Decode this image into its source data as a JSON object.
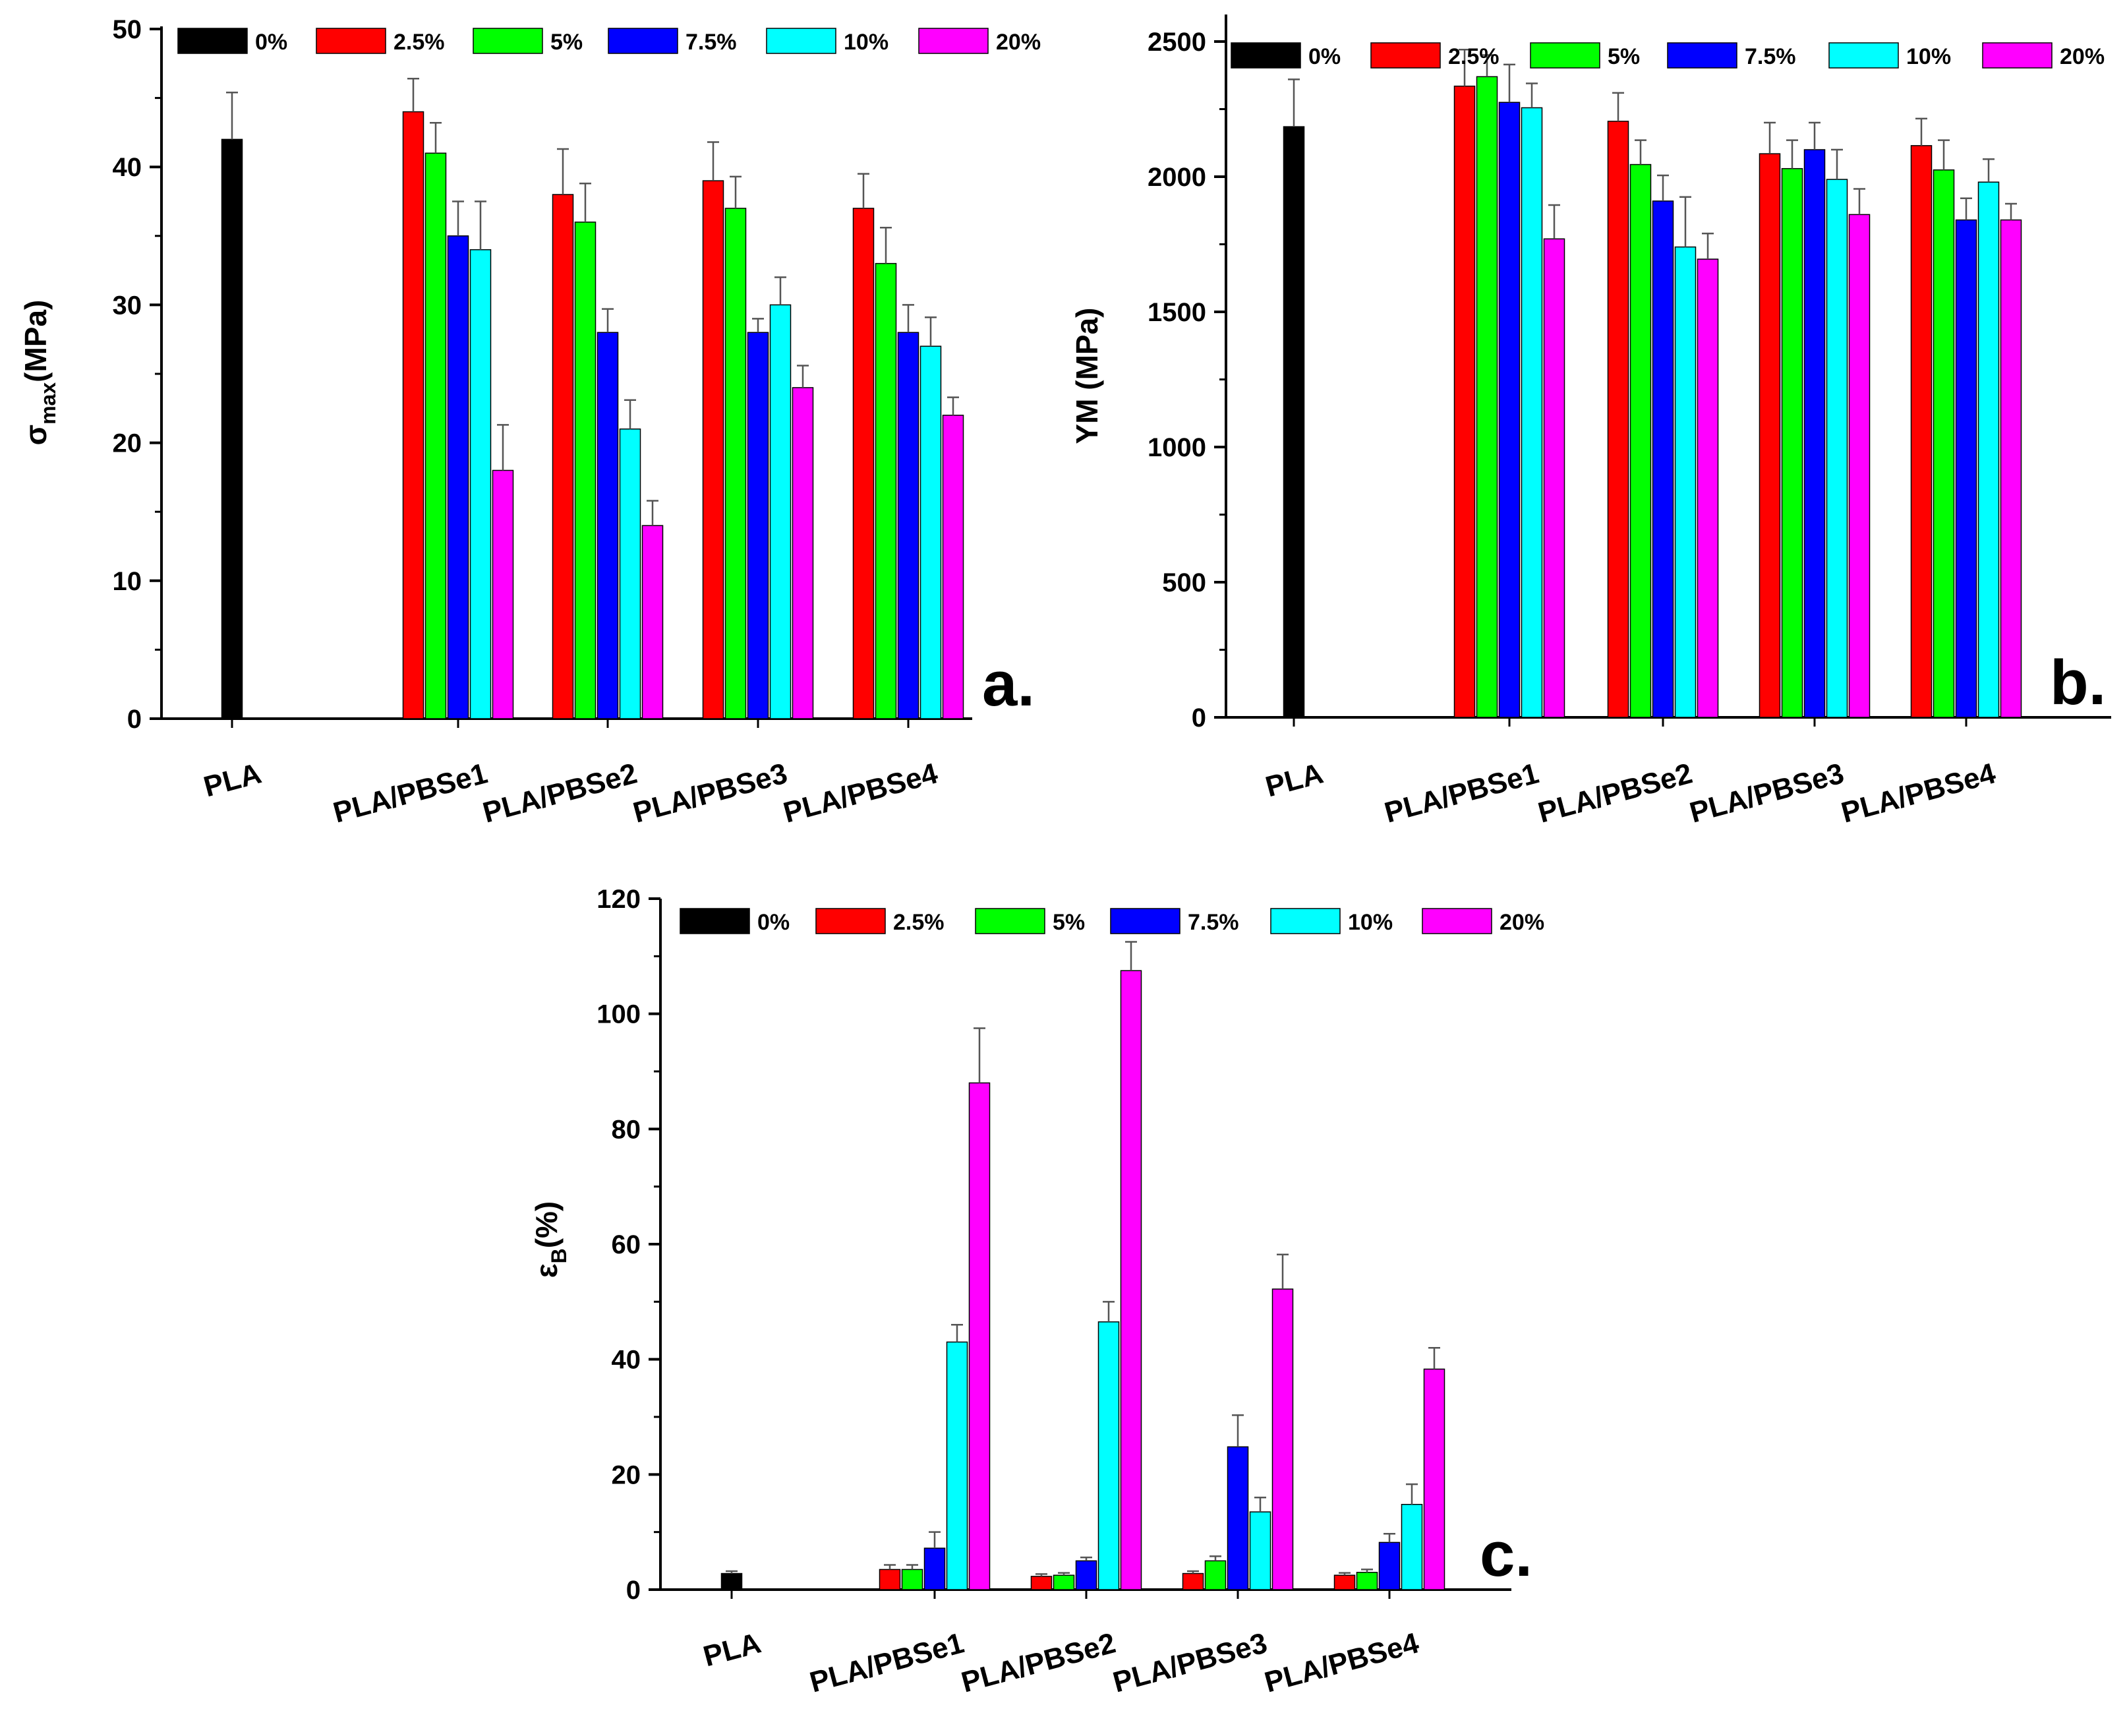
{
  "chart_data": [
    {
      "panel": "a.",
      "type": "bar",
      "ylabel_main": "σ",
      "ylabel_sub": "max",
      "ylabel_rest": "(MPa)",
      "ylim": [
        0,
        50
      ],
      "yticks": [
        0,
        10,
        20,
        30,
        40,
        50
      ],
      "categories": [
        "PLA",
        "PLA/PBSe1",
        "PLA/PBSe2",
        "PLA/PBSe3",
        "PLA/PBSe4"
      ],
      "series": [
        {
          "name": "0%",
          "color": "#000000",
          "values": [
            42,
            null,
            null,
            null,
            null
          ],
          "errors": [
            3.4,
            null,
            null,
            null,
            null
          ]
        },
        {
          "name": "2.5%",
          "color": "#ff0000",
          "values": [
            null,
            44,
            38,
            39,
            37
          ],
          "errors": [
            null,
            2.4,
            3.3,
            2.8,
            2.5
          ]
        },
        {
          "name": "5%",
          "color": "#00ff00",
          "values": [
            null,
            41,
            36,
            37,
            33
          ],
          "errors": [
            null,
            2.2,
            2.8,
            2.3,
            2.6
          ]
        },
        {
          "name": "7.5%",
          "color": "#0000ff",
          "values": [
            null,
            35,
            28,
            28,
            28
          ],
          "errors": [
            null,
            2.5,
            1.7,
            1.0,
            2.0
          ]
        },
        {
          "name": "10%",
          "color": "#00ffff",
          "values": [
            null,
            34,
            21,
            30,
            27
          ],
          "errors": [
            null,
            3.5,
            2.1,
            2.0,
            2.1
          ]
        },
        {
          "name": "20%",
          "color": "#ff00ff",
          "values": [
            null,
            18,
            14,
            24,
            22
          ],
          "errors": [
            null,
            3.3,
            1.8,
            1.6,
            1.3
          ]
        }
      ]
    },
    {
      "panel": "b.",
      "type": "bar",
      "ylabel_main": "YM (MPa)",
      "ylabel_sub": "",
      "ylabel_rest": "",
      "ylim": [
        0,
        2600
      ],
      "yticks": [
        0,
        500,
        1000,
        1500,
        2000,
        2500
      ],
      "categories": [
        "PLA",
        "PLA/PBSe1",
        "PLA/PBSe2",
        "PLA/PBSe3",
        "PLA/PBSe4"
      ],
      "series": [
        {
          "name": "0%",
          "color": "#000000",
          "values": [
            2185,
            null,
            null,
            null,
            null
          ],
          "errors": [
            175,
            null,
            null,
            null,
            null
          ]
        },
        {
          "name": "2.5%",
          "color": "#ff0000",
          "values": [
            null,
            2335,
            2205,
            2085,
            2115
          ],
          "errors": [
            null,
            135,
            105,
            115,
            100
          ]
        },
        {
          "name": "5%",
          "color": "#00ff00",
          "values": [
            null,
            2370,
            2045,
            2030,
            2025
          ],
          "errors": [
            null,
            80,
            90,
            105,
            110
          ]
        },
        {
          "name": "7.5%",
          "color": "#0000ff",
          "values": [
            null,
            2275,
            1910,
            2100,
            1840
          ],
          "errors": [
            null,
            140,
            95,
            100,
            80
          ]
        },
        {
          "name": "10%",
          "color": "#00ffff",
          "values": [
            null,
            2255,
            1740,
            1990,
            1980
          ],
          "errors": [
            null,
            90,
            185,
            110,
            85
          ]
        },
        {
          "name": "20%",
          "color": "#ff00ff",
          "values": [
            null,
            1770,
            1695,
            1860,
            1840
          ],
          "errors": [
            null,
            125,
            95,
            95,
            60
          ]
        }
      ]
    },
    {
      "panel": "c.",
      "type": "bar",
      "ylabel_main": "ε",
      "ylabel_sub": "B",
      "ylabel_rest": "(%)",
      "ylim": [
        0,
        120
      ],
      "yticks": [
        0,
        20,
        40,
        60,
        80,
        100,
        120
      ],
      "categories": [
        "PLA",
        "PLA/PBSe1",
        "PLA/PBSe2",
        "PLA/PBSe3",
        "PLA/PBSe4"
      ],
      "series": [
        {
          "name": "0%",
          "color": "#000000",
          "values": [
            2.8,
            null,
            null,
            null,
            null
          ],
          "errors": [
            0.4,
            null,
            null,
            null,
            null
          ]
        },
        {
          "name": "2.5%",
          "color": "#ff0000",
          "values": [
            null,
            3.5,
            2.3,
            2.8,
            2.5
          ],
          "errors": [
            null,
            0.8,
            0.4,
            0.4,
            0.4
          ]
        },
        {
          "name": "5%",
          "color": "#00ff00",
          "values": [
            null,
            3.5,
            2.5,
            5.0,
            3.0
          ],
          "errors": [
            null,
            0.8,
            0.4,
            0.8,
            0.5
          ]
        },
        {
          "name": "7.5%",
          "color": "#0000ff",
          "values": [
            null,
            7.2,
            5.0,
            24.8,
            8.2
          ],
          "errors": [
            null,
            2.8,
            0.6,
            5.5,
            1.5
          ]
        },
        {
          "name": "10%",
          "color": "#00ffff",
          "values": [
            null,
            43.0,
            46.5,
            13.5,
            14.8
          ],
          "errors": [
            null,
            3.0,
            3.5,
            2.5,
            3.5
          ]
        },
        {
          "name": "20%",
          "color": "#ff00ff",
          "values": [
            null,
            88.0,
            107.5,
            52.2,
            38.3
          ],
          "errors": [
            null,
            9.5,
            5.0,
            6.0,
            3.7
          ]
        }
      ]
    }
  ]
}
